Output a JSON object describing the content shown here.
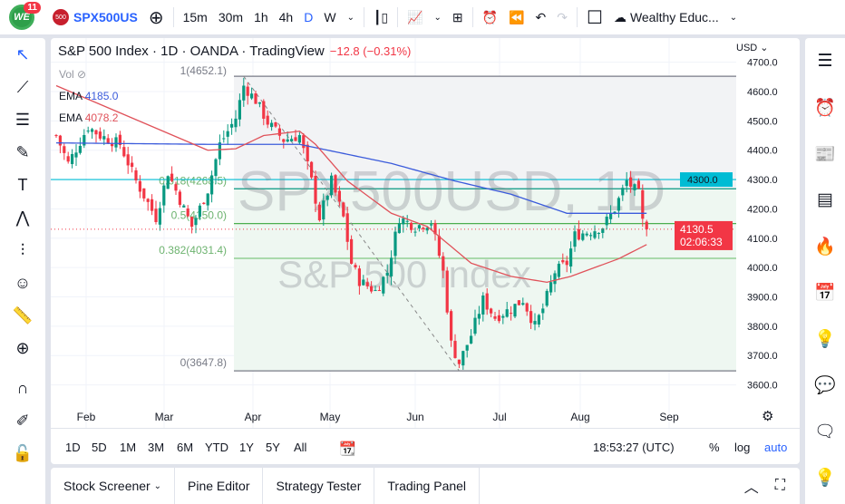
{
  "topbar": {
    "notifications": "11",
    "logo_text": "WE",
    "symbol_badge": "500",
    "symbol": "SPX500US",
    "intervals": [
      "15m",
      "30m",
      "1h",
      "4h",
      "D",
      "W"
    ],
    "active_interval": "D",
    "account": "Wealthy Educ..."
  },
  "header": {
    "title": "S&P 500 Index · 1D · OANDA · TradingView",
    "change": "−12.8 (−0.31%)"
  },
  "legend": {
    "vol": "Vol",
    "ema1_label": "EMA",
    "ema1_value": "4185.0",
    "ema1_color": "#3b5bdb",
    "ema2_label": "EMA",
    "ema2_value": "4078.2",
    "ema2_color": "#e0525a"
  },
  "watermark": {
    "symbol": "SPX500USD, 1D",
    "name": "S&P 500 Index"
  },
  "fib": {
    "levels": [
      {
        "ratio": "1",
        "label": "1(4652.1)",
        "price": 4652.1
      },
      {
        "ratio": "0.618",
        "label": "0.618(4268.5)",
        "price": 4268.5
      },
      {
        "ratio": "0.5",
        "label": "0.5(4150.0)",
        "price": 4150.0
      },
      {
        "ratio": "0.382",
        "label": "0.382(4031.4)",
        "price": 4031.4
      },
      {
        "ratio": "0",
        "label": "0(3647.8)",
        "price": 3647.8
      }
    ]
  },
  "price_axis": {
    "currency": "USD",
    "ticks": [
      "4700.0",
      "4600.0",
      "4500.0",
      "4400.0",
      "4300.0",
      "4200.0",
      "4100.0",
      "4000.0",
      "3900.0",
      "3800.0",
      "3700.0",
      "3600.0"
    ],
    "alert_label": "4300.0",
    "current_price": "4130.5",
    "countdown": "02:06:33",
    "up_color": "#089981",
    "down_color": "#f23645"
  },
  "time_axis": [
    "Feb",
    "Mar",
    "Apr",
    "May",
    "Jun",
    "Jul",
    "Aug",
    "Sep"
  ],
  "range_bar": {
    "ranges": [
      "1D",
      "5D",
      "1M",
      "3M",
      "6M",
      "YTD",
      "1Y",
      "5Y",
      "All"
    ],
    "clock": "18:53:27 (UTC)",
    "percent": "%",
    "log": "log",
    "auto": "auto"
  },
  "bottom_tabs": [
    "Stock Screener",
    "Pine Editor",
    "Strategy Tester",
    "Trading Panel"
  ],
  "chart_data": {
    "type": "candlestick",
    "ylim": [
      3580,
      4720
    ],
    "last": 4130.5,
    "hline": 4300.0,
    "close_path_trading_day": [
      [
        0,
        4450
      ],
      [
        3,
        4355
      ],
      [
        8,
        4480
      ],
      [
        11,
        4450
      ],
      [
        16,
        4420
      ],
      [
        20,
        4295
      ],
      [
        25,
        4170
      ],
      [
        28,
        4325
      ],
      [
        32,
        4200
      ],
      [
        34,
        4140
      ],
      [
        38,
        4265
      ],
      [
        41,
        4420
      ],
      [
        45,
        4510
      ],
      [
        47,
        4620
      ],
      [
        50,
        4570
      ],
      [
        53,
        4495
      ],
      [
        57,
        4435
      ],
      [
        61,
        4450
      ],
      [
        64,
        4295
      ],
      [
        66,
        4170
      ],
      [
        69,
        4295
      ],
      [
        72,
        4170
      ],
      [
        74,
        4015
      ],
      [
        76,
        3955
      ],
      [
        80,
        3920
      ],
      [
        83,
        3985
      ],
      [
        86,
        4170
      ],
      [
        90,
        4140
      ],
      [
        94,
        4155
      ],
      [
        97,
        3985
      ],
      [
        99,
        3740
      ],
      [
        101,
        3675
      ],
      [
        104,
        3770
      ],
      [
        107,
        3890
      ],
      [
        110,
        3830
      ],
      [
        114,
        3860
      ],
      [
        117,
        3890
      ],
      [
        120,
        3800
      ],
      [
        122,
        3860
      ],
      [
        125,
        3985
      ],
      [
        128,
        4015
      ],
      [
        130,
        4110
      ],
      [
        134,
        4125
      ],
      [
        137,
        4140
      ],
      [
        140,
        4200
      ],
      [
        143,
        4295
      ],
      [
        146,
        4250
      ],
      [
        147,
        4155
      ],
      [
        148,
        4130.5
      ]
    ],
    "ema_fast_path": [
      [
        0,
        4620
      ],
      [
        38,
        4400
      ],
      [
        45,
        4405
      ],
      [
        52,
        4450
      ],
      [
        61,
        4465
      ],
      [
        65,
        4420
      ],
      [
        73,
        4295
      ],
      [
        84,
        4185
      ],
      [
        93,
        4140
      ],
      [
        104,
        4015
      ],
      [
        114,
        3970
      ],
      [
        123,
        3950
      ],
      [
        129,
        3970
      ],
      [
        141,
        4030
      ],
      [
        148,
        4078.2
      ]
    ],
    "ema_slow_path": [
      [
        0,
        4425
      ],
      [
        38,
        4420
      ],
      [
        61,
        4420
      ],
      [
        84,
        4355
      ],
      [
        100,
        4295
      ],
      [
        114,
        4250
      ],
      [
        128,
        4185
      ],
      [
        148,
        4185
      ]
    ]
  }
}
